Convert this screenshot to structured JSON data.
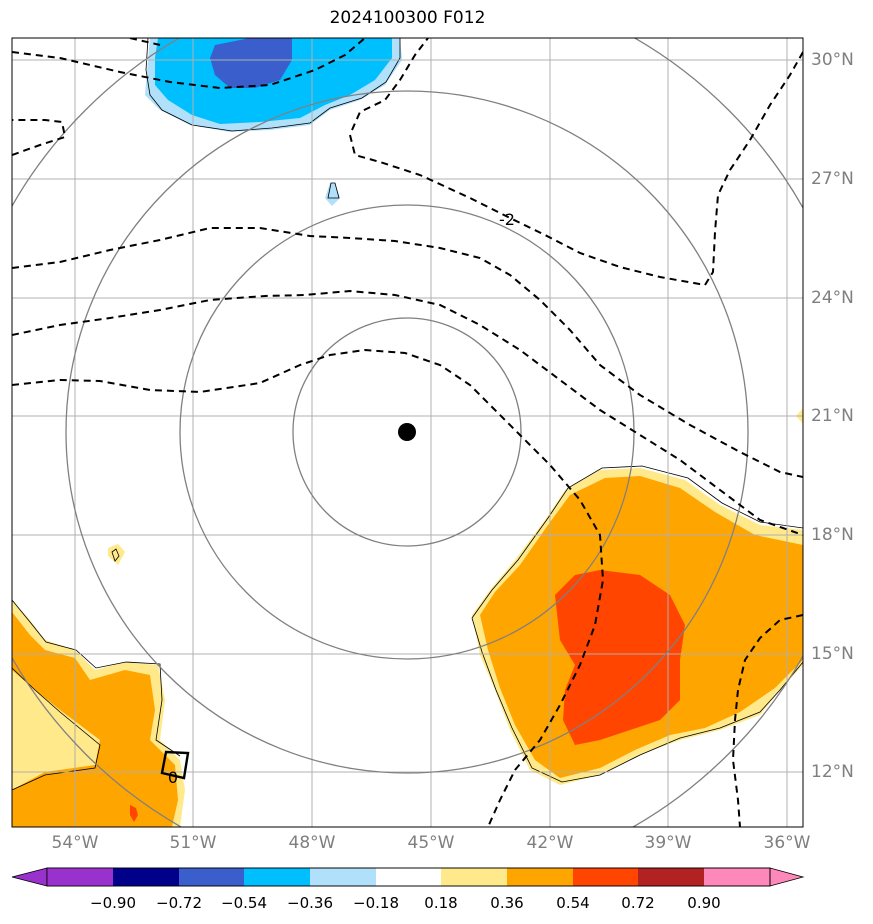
{
  "title": "2024100300 F012",
  "map": {
    "lat_labels": [
      "30°N",
      "27°N",
      "24°N",
      "21°N",
      "18°N",
      "15°N",
      "12°N"
    ],
    "lon_labels": [
      "54°W",
      "51°W",
      "48°W",
      "45°W",
      "42°W",
      "39°W",
      "36°W"
    ],
    "contour_labels": [
      "-2",
      "0"
    ],
    "center_marker": "storm-center"
  },
  "colorbar": {
    "labels": [
      "−0.90",
      "−0.72",
      "−0.54",
      "−0.36",
      "−0.18",
      "0.18",
      "0.36",
      "0.54",
      "0.72",
      "0.90"
    ],
    "colors": [
      "#9932cc",
      "#00008b",
      "#3a5fcd",
      "#00bfff",
      "#b0e0fa",
      "#ffffff",
      "#ffe98a",
      "#ffa500",
      "#ff4500",
      "#b22222",
      "#ff88bb"
    ]
  }
}
